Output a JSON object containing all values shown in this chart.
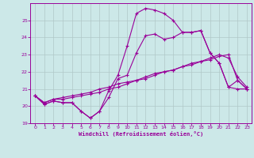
{
  "xlabel": "Windchill (Refroidissement éolien,°C)",
  "background_color": "#cce8e8",
  "line_color": "#990099",
  "grid_color": "#b0c8c8",
  "xlim": [
    -0.5,
    23.5
  ],
  "ylim": [
    19,
    26
  ],
  "yticks": [
    19,
    20,
    21,
    22,
    23,
    24,
    25
  ],
  "xticks": [
    0,
    1,
    2,
    3,
    4,
    5,
    6,
    7,
    8,
    9,
    10,
    11,
    12,
    13,
    14,
    15,
    16,
    17,
    18,
    19,
    20,
    21,
    22,
    23
  ],
  "line1_x": [
    0,
    1,
    2,
    3,
    4,
    5,
    6,
    7,
    8,
    9,
    10,
    11,
    12,
    13,
    14,
    15,
    16,
    17,
    18,
    19,
    20,
    21,
    22,
    23
  ],
  "line1_y": [
    20.6,
    20.1,
    20.3,
    20.2,
    20.2,
    19.7,
    19.3,
    19.7,
    20.5,
    21.6,
    21.8,
    23.1,
    24.1,
    24.2,
    23.9,
    24.0,
    24.3,
    24.3,
    24.4,
    23.1,
    22.5,
    21.1,
    21.0,
    21.0
  ],
  "line2_x": [
    0,
    1,
    2,
    3,
    4,
    5,
    6,
    7,
    8,
    9,
    10,
    11,
    12,
    13,
    14,
    15,
    16,
    17,
    18,
    19,
    20,
    21,
    22,
    23
  ],
  "line2_y": [
    20.6,
    20.1,
    20.3,
    20.2,
    20.2,
    19.7,
    19.3,
    19.7,
    20.9,
    21.8,
    23.5,
    25.4,
    25.7,
    25.6,
    25.4,
    25.0,
    24.3,
    24.3,
    24.4,
    23.1,
    22.5,
    21.1,
    21.5,
    21.0
  ],
  "line3_x": [
    0,
    1,
    2,
    3,
    4,
    5,
    6,
    7,
    8,
    9,
    10,
    11,
    12,
    13,
    14,
    15,
    16,
    17,
    18,
    19,
    20,
    21,
    22,
    23
  ],
  "line3_y": [
    20.6,
    20.2,
    20.4,
    20.4,
    20.5,
    20.6,
    20.7,
    20.8,
    21.0,
    21.1,
    21.3,
    21.5,
    21.6,
    21.8,
    22.0,
    22.1,
    22.3,
    22.5,
    22.6,
    22.8,
    23.0,
    22.8,
    21.7,
    21.1
  ],
  "line4_x": [
    0,
    1,
    2,
    3,
    4,
    5,
    6,
    7,
    8,
    9,
    10,
    11,
    12,
    13,
    14,
    15,
    16,
    17,
    18,
    19,
    20,
    21,
    22,
    23
  ],
  "line4_y": [
    20.6,
    20.2,
    20.4,
    20.5,
    20.6,
    20.7,
    20.8,
    21.0,
    21.1,
    21.3,
    21.4,
    21.5,
    21.7,
    21.9,
    22.0,
    22.1,
    22.3,
    22.4,
    22.6,
    22.7,
    22.9,
    23.0,
    21.5,
    21.0
  ]
}
